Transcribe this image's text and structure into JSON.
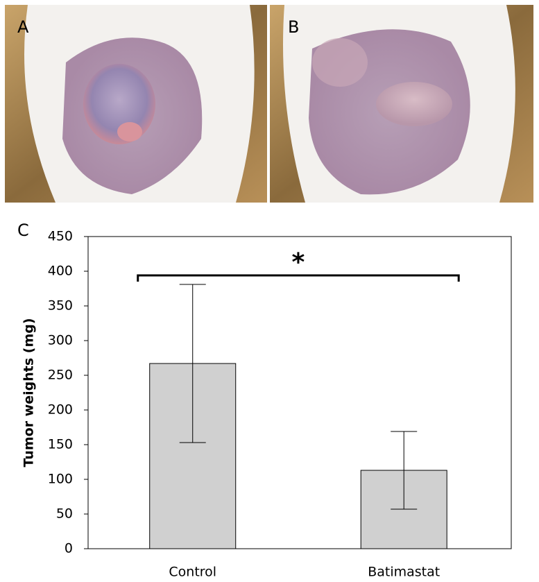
{
  "panel_labels": [
    "A",
    "B",
    "C"
  ],
  "chart_data": {
    "type": "bar",
    "ylabel": "Tumor weights (mg)",
    "categories": [
      "Control",
      "Batimastat"
    ],
    "values": [
      267,
      113
    ],
    "errors": [
      114,
      56
    ],
    "color": "#d0d0d0",
    "annotation": "*",
    "ylim": [
      0,
      450
    ],
    "yticks": [
      0,
      50,
      100,
      150,
      200,
      250,
      300,
      350,
      400,
      450
    ],
    "grid": false
  }
}
